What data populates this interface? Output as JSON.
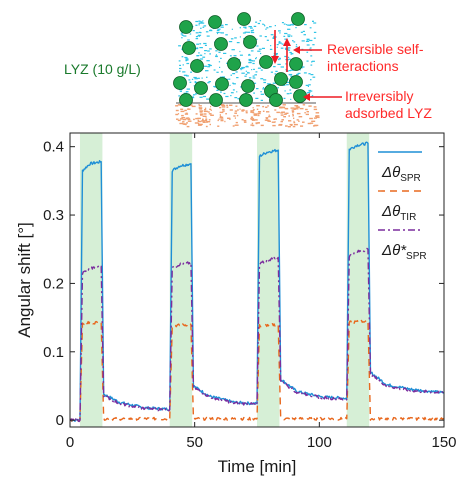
{
  "chart_data": {
    "type": "line",
    "xlabel": "Time [min]",
    "ylabel": "Angular shift [°]",
    "xlim": [
      0,
      150
    ],
    "ylim": [
      -0.01,
      0.42
    ],
    "x_ticks": [
      "0",
      "50",
      "100",
      "150"
    ],
    "y_ticks": [
      "0",
      "0.1",
      "0.2",
      "0.3",
      "0.4"
    ],
    "grid": false,
    "legend_position": "right",
    "injection_windows": [
      [
        4,
        13
      ],
      [
        40,
        49
      ],
      [
        75,
        84
      ],
      [
        111,
        120
      ]
    ],
    "series": [
      {
        "name": "Δθ_SPR",
        "legend_main": "Δθ",
        "legend_sub": "SPR",
        "color": "#1f8fd6",
        "style": "solid",
        "x": [
          0,
          4,
          5,
          8,
          12.5,
          13.5,
          20,
          30,
          40,
          41,
          44,
          48.5,
          49.5,
          56,
          66,
          75,
          76,
          79,
          83.5,
          84.5,
          91,
          101,
          111,
          112,
          115,
          119.5,
          120.5,
          127,
          137,
          150
        ],
        "y": [
          0.0,
          0.0,
          0.365,
          0.375,
          0.378,
          0.038,
          0.026,
          0.018,
          0.016,
          0.365,
          0.372,
          0.375,
          0.05,
          0.035,
          0.026,
          0.024,
          0.386,
          0.392,
          0.395,
          0.06,
          0.042,
          0.034,
          0.032,
          0.396,
          0.402,
          0.405,
          0.07,
          0.052,
          0.045,
          0.04
        ]
      },
      {
        "name": "Δθ_TIR",
        "legend_main": "Δθ",
        "legend_sub": "TIR",
        "color": "#e8681e",
        "style": "dashed",
        "x": [
          0,
          4,
          5,
          12.5,
          13.5,
          40,
          41,
          48.5,
          49.5,
          75,
          76,
          83.5,
          84.5,
          111,
          112,
          119.5,
          120.5,
          150
        ],
        "y": [
          0.0,
          0.0,
          0.142,
          0.143,
          0.002,
          0.002,
          0.138,
          0.14,
          0.002,
          0.002,
          0.138,
          0.14,
          0.002,
          0.002,
          0.143,
          0.145,
          0.002,
          0.002
        ]
      },
      {
        "name": "Δθ*_SPR",
        "legend_main": "Δθ*",
        "legend_sub": "SPR",
        "color": "#7b2d9e",
        "style": "dashdot",
        "x": [
          0,
          4,
          5,
          8,
          12.5,
          13.5,
          20,
          30,
          40,
          41,
          44,
          48.5,
          49.5,
          56,
          66,
          75,
          76,
          79,
          83.5,
          84.5,
          91,
          101,
          111,
          112,
          115,
          119.5,
          120.5,
          127,
          137,
          150
        ],
        "y": [
          0.0,
          0.0,
          0.215,
          0.222,
          0.225,
          0.036,
          0.024,
          0.017,
          0.015,
          0.222,
          0.228,
          0.23,
          0.048,
          0.034,
          0.025,
          0.023,
          0.228,
          0.234,
          0.238,
          0.058,
          0.04,
          0.033,
          0.03,
          0.24,
          0.246,
          0.25,
          0.067,
          0.05,
          0.043,
          0.04
        ]
      }
    ]
  },
  "inset": {
    "left_label": "LYZ (10 g/L)",
    "ann_self_1": "Reversible self-",
    "ann_self_2": "interactions",
    "ann_adsorbed_1": "Irreversibly",
    "ann_adsorbed_2": "adsorbed LYZ",
    "colors": {
      "solution": "#2ec4e6",
      "molecule": "#1fa34a",
      "adsorbed_layer": "#f0a070",
      "arrow": "#ee1c24"
    }
  }
}
